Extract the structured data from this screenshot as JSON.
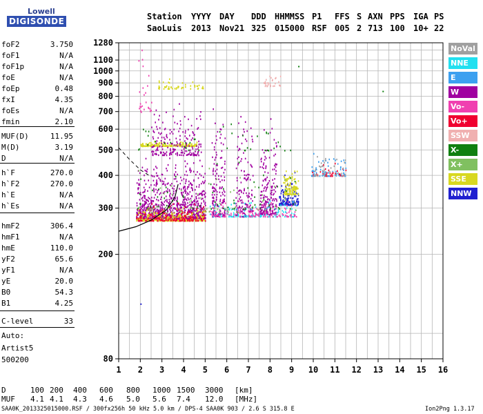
{
  "logo": {
    "line1": "Lowell",
    "line2": "DIGISONDE"
  },
  "header": {
    "labels": [
      "Station",
      "YYYY",
      "DAY",
      "DDD",
      "HHMMSS",
      "P1",
      "FFS",
      "S",
      "AXN",
      "PPS",
      "IGA",
      "PS"
    ],
    "values": [
      "SaoLuis",
      "2013",
      "Nov21",
      "325",
      "015000",
      "RSF",
      "005",
      "2",
      "713",
      "100",
      "10+",
      "22"
    ]
  },
  "params": [
    {
      "name": "foF2",
      "value": "3.750"
    },
    {
      "name": "foF1",
      "value": "N/A"
    },
    {
      "name": "foF1p",
      "value": "N/A"
    },
    {
      "name": "foE",
      "value": "N/A"
    },
    {
      "name": "foEp",
      "value": "0.48"
    },
    {
      "name": "fxI",
      "value": "4.35"
    },
    {
      "name": "foEs",
      "value": "N/A"
    },
    {
      "name": "fmin",
      "value": "2.10"
    },
    {
      "name": "MUF(D)",
      "value": "11.95"
    },
    {
      "name": "M(D)",
      "value": "3.19"
    },
    {
      "name": "D",
      "value": "N/A"
    },
    {
      "name": "h`F",
      "value": "270.0"
    },
    {
      "name": "h`F2",
      "value": "270.0"
    },
    {
      "name": "h`E",
      "value": "N/A"
    },
    {
      "name": "h`Es",
      "value": "N/A"
    },
    {
      "name": "hmF2",
      "value": "306.4"
    },
    {
      "name": "hmF1",
      "value": "N/A"
    },
    {
      "name": "hmE",
      "value": "110.0"
    },
    {
      "name": "yF2",
      "value": "65.6"
    },
    {
      "name": "yF1",
      "value": "N/A"
    },
    {
      "name": "yE",
      "value": "20.0"
    },
    {
      "name": "B0",
      "value": "54.3"
    },
    {
      "name": "B1",
      "value": "4.25"
    },
    {
      "name": "C-level",
      "value": "33"
    }
  ],
  "auto": {
    "line1": "Auto:",
    "line2": "Artist5",
    "line3": "500200"
  },
  "legend": [
    {
      "label": "NoVal",
      "color": "#a0a0a0"
    },
    {
      "label": "NNE",
      "color": "#22e0f0"
    },
    {
      "label": "E",
      "color": "#3ca0f0"
    },
    {
      "label": "W",
      "color": "#a000a0"
    },
    {
      "label": "Vo-",
      "color": "#f040b0"
    },
    {
      "label": "Vo+",
      "color": "#f00030"
    },
    {
      "label": "SSW",
      "color": "#f0b0b0"
    },
    {
      "label": "X-",
      "color": "#108010"
    },
    {
      "label": "X+",
      "color": "#80c060"
    },
    {
      "label": "SSE",
      "color": "#d8d820"
    },
    {
      "label": "NNW",
      "color": "#2020d0"
    }
  ],
  "mufTable": {
    "d_label": "D",
    "d_values": [
      "100",
      "200",
      "400",
      "600",
      "800",
      "1000",
      "1500",
      "3000"
    ],
    "d_unit": "[km]",
    "muf_label": "MUF",
    "muf_values": [
      "4.1",
      "4.1",
      "4.3",
      "4.6",
      "5.0",
      "5.6",
      "7.4",
      "12.0"
    ],
    "muf_unit": "[MHz]"
  },
  "footer": {
    "left": "SAA0K_2013325015000.RSF / 300fx256h 50 kHz 5.0 km / DPS-4 SAA0K 903 / 2.6 S 315.8 E",
    "right": "Ion2Png 1.3.17"
  },
  "chart_data": {
    "type": "scatter",
    "x_ticks": [
      1,
      2,
      3,
      4,
      5,
      6,
      7,
      8,
      9,
      10,
      11,
      12,
      13,
      14,
      15,
      16
    ],
    "y_ticks": [
      80,
      200,
      300,
      400,
      500,
      600,
      700,
      800,
      900,
      1000,
      1100,
      1280
    ],
    "xlim": [
      1,
      16
    ],
    "ylim": [
      80,
      1280
    ],
    "y_scale": "log",
    "grid": true,
    "clusters": [
      {
        "x": [
          1.8,
          5.0
        ],
        "y": [
          275,
          480
        ],
        "color": "#a000a0",
        "density": 900
      },
      {
        "x": [
          1.8,
          5.0
        ],
        "y": [
          270,
          310
        ],
        "color": "#d8d820",
        "density": 260
      },
      {
        "x": [
          1.8,
          5.0
        ],
        "y": [
          270,
          320
        ],
        "color": "#f00030",
        "density": 180
      },
      {
        "x": [
          2.0,
          4.6
        ],
        "y": [
          520,
          545
        ],
        "color": "#d8d820",
        "density": 160
      },
      {
        "x": [
          2.5,
          4.8
        ],
        "y": [
          480,
          800
        ],
        "color": "#a000a0",
        "density": 200
      },
      {
        "x": [
          5.3,
          5.9
        ],
        "y": [
          280,
          800
        ],
        "color": "#a000a0",
        "density": 160
      },
      {
        "x": [
          6.4,
          7.2
        ],
        "y": [
          280,
          700
        ],
        "color": "#a000a0",
        "density": 160
      },
      {
        "x": [
          7.5,
          8.3
        ],
        "y": [
          285,
          700
        ],
        "color": "#a000a0",
        "density": 200
      },
      {
        "x": [
          7.7,
          8.5
        ],
        "y": [
          880,
          980
        ],
        "color": "#f0b0b0",
        "density": 30
      },
      {
        "x": [
          8.4,
          9.3
        ],
        "y": [
          310,
          420
        ],
        "color": "#2020d0",
        "density": 140
      },
      {
        "x": [
          8.6,
          9.3
        ],
        "y": [
          340,
          440
        ],
        "color": "#d8d820",
        "density": 110
      },
      {
        "x": [
          5.2,
          9.2
        ],
        "y": [
          280,
          330
        ],
        "color": "#22e0f0",
        "density": 120
      },
      {
        "x": [
          5.2,
          9.2
        ],
        "y": [
          280,
          330
        ],
        "color": "#f040b0",
        "density": 120
      },
      {
        "x": [
          9.9,
          11.5
        ],
        "y": [
          400,
          490
        ],
        "color": "#3ca0f0",
        "density": 70
      },
      {
        "x": [
          9.9,
          11.5
        ],
        "y": [
          400,
          490
        ],
        "color": "#f00030",
        "density": 40
      },
      {
        "x": [
          9.9,
          11.5
        ],
        "y": [
          400,
          490
        ],
        "color": "#a0a0a0",
        "density": 40
      },
      {
        "x": [
          2.8,
          4.9
        ],
        "y": [
          860,
          960
        ],
        "color": "#d8d820",
        "density": 50
      },
      {
        "x": [
          1.9,
          2.5
        ],
        "y": [
          700,
          1270
        ],
        "color": "#f040b0",
        "density": 25
      },
      {
        "x": [
          1.8,
          9.3
        ],
        "y": [
          500,
          700
        ],
        "color": "#108010",
        "density": 40
      },
      {
        "x": [
          1.8,
          9.3
        ],
        "y": [
          300,
          500
        ],
        "color": "#108010",
        "density": 60
      },
      {
        "x": [
          1.8,
          9.3
        ],
        "y": [
          290,
          460
        ],
        "color": "#80c060",
        "density": 60
      }
    ],
    "isolated_points": [
      {
        "x": 9.3,
        "y": 1045,
        "color": "#108010"
      },
      {
        "x": 13.2,
        "y": 840,
        "color": "#108010"
      },
      {
        "x": 2.0,
        "y": 130,
        "color": "#2020d0"
      }
    ],
    "profile_line": {
      "x": [
        1.0,
        1.8,
        2.5,
        3.2,
        3.6,
        3.75
      ],
      "y": [
        245,
        255,
        270,
        295,
        330,
        370
      ]
    },
    "profile_dashed": {
      "x": [
        1.0,
        1.5,
        2.0,
        2.4
      ],
      "y": [
        510,
        460,
        420,
        400
      ]
    }
  }
}
